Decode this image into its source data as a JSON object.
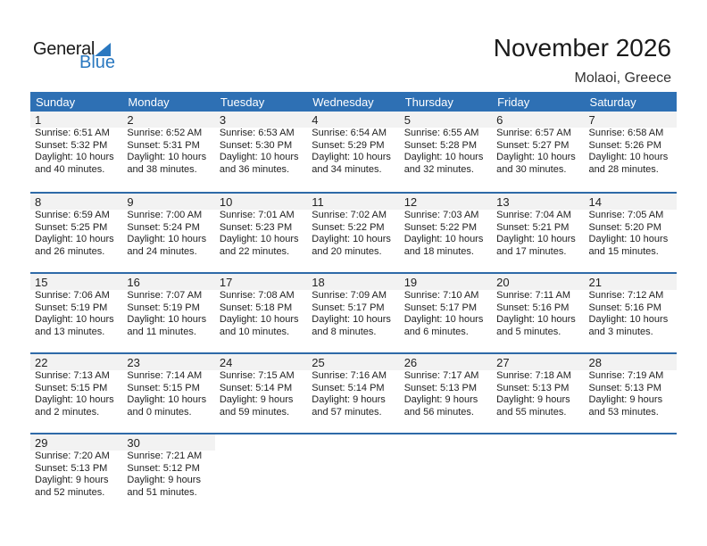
{
  "logo": {
    "general": "General",
    "blue": "Blue"
  },
  "header": {
    "title": "November 2026",
    "location": "Molaoi, Greece"
  },
  "weekdays": [
    "Sunday",
    "Monday",
    "Tuesday",
    "Wednesday",
    "Thursday",
    "Friday",
    "Saturday"
  ],
  "colors": {
    "header": "#2e70b4",
    "logo_blue": "#2a78c0",
    "date_band": "#f2f2f2"
  },
  "weeks": [
    [
      {
        "date": "1",
        "sunrise": "Sunrise: 6:51 AM",
        "sunset": "Sunset: 5:32 PM",
        "daylight1": "Daylight: 10 hours",
        "daylight2": "and 40 minutes."
      },
      {
        "date": "2",
        "sunrise": "Sunrise: 6:52 AM",
        "sunset": "Sunset: 5:31 PM",
        "daylight1": "Daylight: 10 hours",
        "daylight2": "and 38 minutes."
      },
      {
        "date": "3",
        "sunrise": "Sunrise: 6:53 AM",
        "sunset": "Sunset: 5:30 PM",
        "daylight1": "Daylight: 10 hours",
        "daylight2": "and 36 minutes."
      },
      {
        "date": "4",
        "sunrise": "Sunrise: 6:54 AM",
        "sunset": "Sunset: 5:29 PM",
        "daylight1": "Daylight: 10 hours",
        "daylight2": "and 34 minutes."
      },
      {
        "date": "5",
        "sunrise": "Sunrise: 6:55 AM",
        "sunset": "Sunset: 5:28 PM",
        "daylight1": "Daylight: 10 hours",
        "daylight2": "and 32 minutes."
      },
      {
        "date": "6",
        "sunrise": "Sunrise: 6:57 AM",
        "sunset": "Sunset: 5:27 PM",
        "daylight1": "Daylight: 10 hours",
        "daylight2": "and 30 minutes."
      },
      {
        "date": "7",
        "sunrise": "Sunrise: 6:58 AM",
        "sunset": "Sunset: 5:26 PM",
        "daylight1": "Daylight: 10 hours",
        "daylight2": "and 28 minutes."
      }
    ],
    [
      {
        "date": "8",
        "sunrise": "Sunrise: 6:59 AM",
        "sunset": "Sunset: 5:25 PM",
        "daylight1": "Daylight: 10 hours",
        "daylight2": "and 26 minutes."
      },
      {
        "date": "9",
        "sunrise": "Sunrise: 7:00 AM",
        "sunset": "Sunset: 5:24 PM",
        "daylight1": "Daylight: 10 hours",
        "daylight2": "and 24 minutes."
      },
      {
        "date": "10",
        "sunrise": "Sunrise: 7:01 AM",
        "sunset": "Sunset: 5:23 PM",
        "daylight1": "Daylight: 10 hours",
        "daylight2": "and 22 minutes."
      },
      {
        "date": "11",
        "sunrise": "Sunrise: 7:02 AM",
        "sunset": "Sunset: 5:22 PM",
        "daylight1": "Daylight: 10 hours",
        "daylight2": "and 20 minutes."
      },
      {
        "date": "12",
        "sunrise": "Sunrise: 7:03 AM",
        "sunset": "Sunset: 5:22 PM",
        "daylight1": "Daylight: 10 hours",
        "daylight2": "and 18 minutes."
      },
      {
        "date": "13",
        "sunrise": "Sunrise: 7:04 AM",
        "sunset": "Sunset: 5:21 PM",
        "daylight1": "Daylight: 10 hours",
        "daylight2": "and 17 minutes."
      },
      {
        "date": "14",
        "sunrise": "Sunrise: 7:05 AM",
        "sunset": "Sunset: 5:20 PM",
        "daylight1": "Daylight: 10 hours",
        "daylight2": "and 15 minutes."
      }
    ],
    [
      {
        "date": "15",
        "sunrise": "Sunrise: 7:06 AM",
        "sunset": "Sunset: 5:19 PM",
        "daylight1": "Daylight: 10 hours",
        "daylight2": "and 13 minutes."
      },
      {
        "date": "16",
        "sunrise": "Sunrise: 7:07 AM",
        "sunset": "Sunset: 5:19 PM",
        "daylight1": "Daylight: 10 hours",
        "daylight2": "and 11 minutes."
      },
      {
        "date": "17",
        "sunrise": "Sunrise: 7:08 AM",
        "sunset": "Sunset: 5:18 PM",
        "daylight1": "Daylight: 10 hours",
        "daylight2": "and 10 minutes."
      },
      {
        "date": "18",
        "sunrise": "Sunrise: 7:09 AM",
        "sunset": "Sunset: 5:17 PM",
        "daylight1": "Daylight: 10 hours",
        "daylight2": "and 8 minutes."
      },
      {
        "date": "19",
        "sunrise": "Sunrise: 7:10 AM",
        "sunset": "Sunset: 5:17 PM",
        "daylight1": "Daylight: 10 hours",
        "daylight2": "and 6 minutes."
      },
      {
        "date": "20",
        "sunrise": "Sunrise: 7:11 AM",
        "sunset": "Sunset: 5:16 PM",
        "daylight1": "Daylight: 10 hours",
        "daylight2": "and 5 minutes."
      },
      {
        "date": "21",
        "sunrise": "Sunrise: 7:12 AM",
        "sunset": "Sunset: 5:16 PM",
        "daylight1": "Daylight: 10 hours",
        "daylight2": "and 3 minutes."
      }
    ],
    [
      {
        "date": "22",
        "sunrise": "Sunrise: 7:13 AM",
        "sunset": "Sunset: 5:15 PM",
        "daylight1": "Daylight: 10 hours",
        "daylight2": "and 2 minutes."
      },
      {
        "date": "23",
        "sunrise": "Sunrise: 7:14 AM",
        "sunset": "Sunset: 5:15 PM",
        "daylight1": "Daylight: 10 hours",
        "daylight2": "and 0 minutes."
      },
      {
        "date": "24",
        "sunrise": "Sunrise: 7:15 AM",
        "sunset": "Sunset: 5:14 PM",
        "daylight1": "Daylight: 9 hours",
        "daylight2": "and 59 minutes."
      },
      {
        "date": "25",
        "sunrise": "Sunrise: 7:16 AM",
        "sunset": "Sunset: 5:14 PM",
        "daylight1": "Daylight: 9 hours",
        "daylight2": "and 57 minutes."
      },
      {
        "date": "26",
        "sunrise": "Sunrise: 7:17 AM",
        "sunset": "Sunset: 5:13 PM",
        "daylight1": "Daylight: 9 hours",
        "daylight2": "and 56 minutes."
      },
      {
        "date": "27",
        "sunrise": "Sunrise: 7:18 AM",
        "sunset": "Sunset: 5:13 PM",
        "daylight1": "Daylight: 9 hours",
        "daylight2": "and 55 minutes."
      },
      {
        "date": "28",
        "sunrise": "Sunrise: 7:19 AM",
        "sunset": "Sunset: 5:13 PM",
        "daylight1": "Daylight: 9 hours",
        "daylight2": "and 53 minutes."
      }
    ],
    [
      {
        "date": "29",
        "sunrise": "Sunrise: 7:20 AM",
        "sunset": "Sunset: 5:13 PM",
        "daylight1": "Daylight: 9 hours",
        "daylight2": "and 52 minutes."
      },
      {
        "date": "30",
        "sunrise": "Sunrise: 7:21 AM",
        "sunset": "Sunset: 5:12 PM",
        "daylight1": "Daylight: 9 hours",
        "daylight2": "and 51 minutes."
      }
    ]
  ]
}
